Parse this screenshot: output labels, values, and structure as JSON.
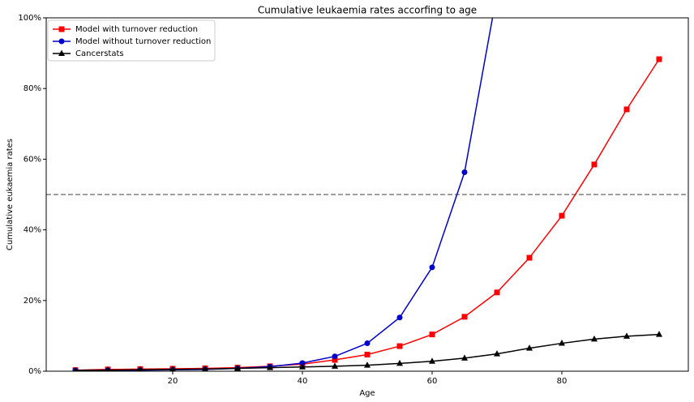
{
  "chart_data": {
    "type": "line",
    "title": "Cumulative leukaemia rates accorfing to age",
    "x_label": "Age",
    "y_label": "Cumulative eukaemia rates",
    "x": [
      5,
      10,
      15,
      20,
      25,
      30,
      35,
      40,
      45,
      50,
      55,
      60,
      65,
      70,
      75,
      80,
      85,
      90,
      95
    ],
    "series": [
      {
        "name": "Model with turnover reduction",
        "color": "#ff0000",
        "marker": "square",
        "values": [
          0.3,
          0.5,
          0.6,
          0.7,
          0.8,
          1.0,
          1.4,
          2.0,
          3.2,
          4.7,
          7.1,
          10.4,
          15.4,
          22.3,
          32.1,
          44.0,
          58.5,
          74.1,
          88.3
        ]
      },
      {
        "name": "Model without turnover reduction",
        "color": "#0000cc",
        "marker": "circle",
        "values": [
          0.2,
          0.3,
          0.3,
          0.4,
          0.5,
          0.8,
          1.3,
          2.3,
          4.2,
          7.9,
          15.2,
          29.4,
          56.3,
          107,
          null,
          null,
          null,
          null,
          null
        ]
      },
      {
        "name": "Cancerstats",
        "color": "#000000",
        "marker": "triangle",
        "values": [
          0.2,
          0.3,
          0.4,
          0.5,
          0.6,
          0.8,
          1.0,
          1.2,
          1.4,
          1.7,
          2.2,
          2.8,
          3.7,
          4.9,
          6.5,
          7.9,
          9.1,
          9.9,
          10.4
        ]
      }
    ],
    "reference_line": {
      "value": 50,
      "color": "#808080",
      "style": "dashed"
    },
    "xlim": [
      0.5,
      99.5
    ],
    "xticks": [
      20,
      40,
      60,
      80
    ],
    "ylim": [
      0,
      100
    ],
    "yticks": [
      {
        "value": 0,
        "label": "0%"
      },
      {
        "value": 20,
        "label": "20%"
      },
      {
        "value": 40,
        "label": "40%"
      },
      {
        "value": 60,
        "label": "60%"
      },
      {
        "value": 80,
        "label": "80%"
      },
      {
        "value": 100,
        "label": "100%"
      }
    ],
    "legend": "upper left",
    "grid": false
  }
}
